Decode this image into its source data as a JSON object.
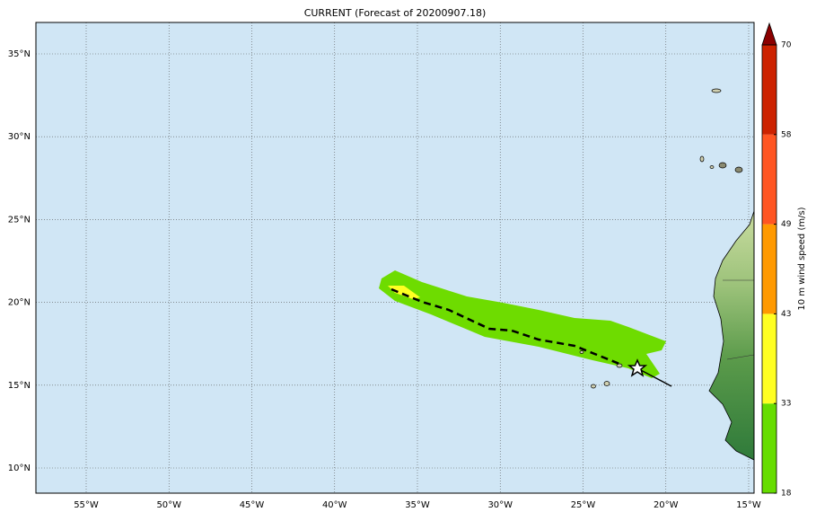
{
  "title": "CURRENT (Forecast of 20200907.18)",
  "map": {
    "lat_labels": [
      {
        "value": 35,
        "label": "35°N"
      },
      {
        "value": 30,
        "label": "30°N"
      },
      {
        "value": 25,
        "label": "25°N"
      },
      {
        "value": 20,
        "label": "20°N"
      },
      {
        "value": 15,
        "label": "15°N"
      },
      {
        "value": 10,
        "label": "10°N"
      }
    ],
    "lon_labels": [
      {
        "value": -55,
        "label": "55°W"
      },
      {
        "value": -50,
        "label": "50°W"
      },
      {
        "value": -45,
        "label": "45°W"
      },
      {
        "value": -40,
        "label": "40°W"
      },
      {
        "value": -35,
        "label": "35°W"
      },
      {
        "value": -30,
        "label": "30°W"
      },
      {
        "value": -25,
        "label": "25°W"
      },
      {
        "value": -20,
        "label": "20°W"
      },
      {
        "value": -15,
        "label": "15°W"
      }
    ]
  },
  "colorbar": {
    "label": "10 m wind speed (m/s)",
    "ticks": [
      18,
      33,
      43,
      49,
      58,
      70
    ],
    "colors": [
      "#66dd00",
      "#ffff22",
      "#ff9900",
      "#ff5522",
      "#cc2200"
    ],
    "extend_color": "#8b0000"
  }
}
